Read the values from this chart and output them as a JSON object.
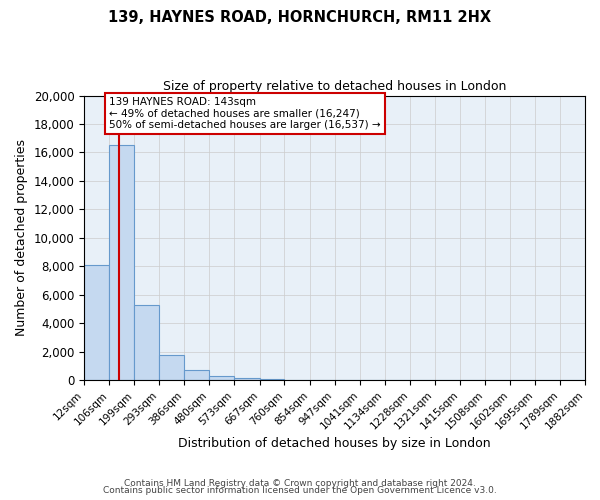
{
  "title": "139, HAYNES ROAD, HORNCHURCH, RM11 2HX",
  "subtitle": "Size of property relative to detached houses in London",
  "xlabel": "Distribution of detached houses by size in London",
  "ylabel": "Number of detached properties",
  "bar_values": [
    8100,
    16500,
    5300,
    1800,
    700,
    300,
    150,
    80,
    30,
    0,
    0,
    0,
    0,
    0,
    0,
    0,
    0,
    0,
    0,
    0
  ],
  "bin_labels": [
    "12sqm",
    "106sqm",
    "199sqm",
    "293sqm",
    "386sqm",
    "480sqm",
    "573sqm",
    "667sqm",
    "760sqm",
    "854sqm",
    "947sqm",
    "1041sqm",
    "1134sqm",
    "1228sqm",
    "1321sqm",
    "1415sqm",
    "1508sqm",
    "1602sqm",
    "1695sqm",
    "1789sqm",
    "1882sqm"
  ],
  "bar_color": "#c5d9f0",
  "bar_edge_color": "#6699cc",
  "property_line_x": 143,
  "bin_edges": [
    12,
    106,
    199,
    293,
    386,
    480,
    573,
    667,
    760,
    854,
    947,
    1041,
    1134,
    1228,
    1321,
    1415,
    1508,
    1602,
    1695,
    1789,
    1882
  ],
  "red_line_color": "#cc0000",
  "annotation_title": "139 HAYNES ROAD: 143sqm",
  "annotation_line1": "← 49% of detached houses are smaller (16,247)",
  "annotation_line2": "50% of semi-detached houses are larger (16,537) →",
  "annotation_box_color": "#ffffff",
  "annotation_box_edge": "#cc0000",
  "ylim": [
    0,
    20000
  ],
  "yticks": [
    0,
    2000,
    4000,
    6000,
    8000,
    10000,
    12000,
    14000,
    16000,
    18000,
    20000
  ],
  "footer1": "Contains HM Land Registry data © Crown copyright and database right 2024.",
  "footer2": "Contains public sector information licensed under the Open Government Licence v3.0.",
  "grid_color": "#cccccc",
  "bg_color": "#e8f0f8"
}
